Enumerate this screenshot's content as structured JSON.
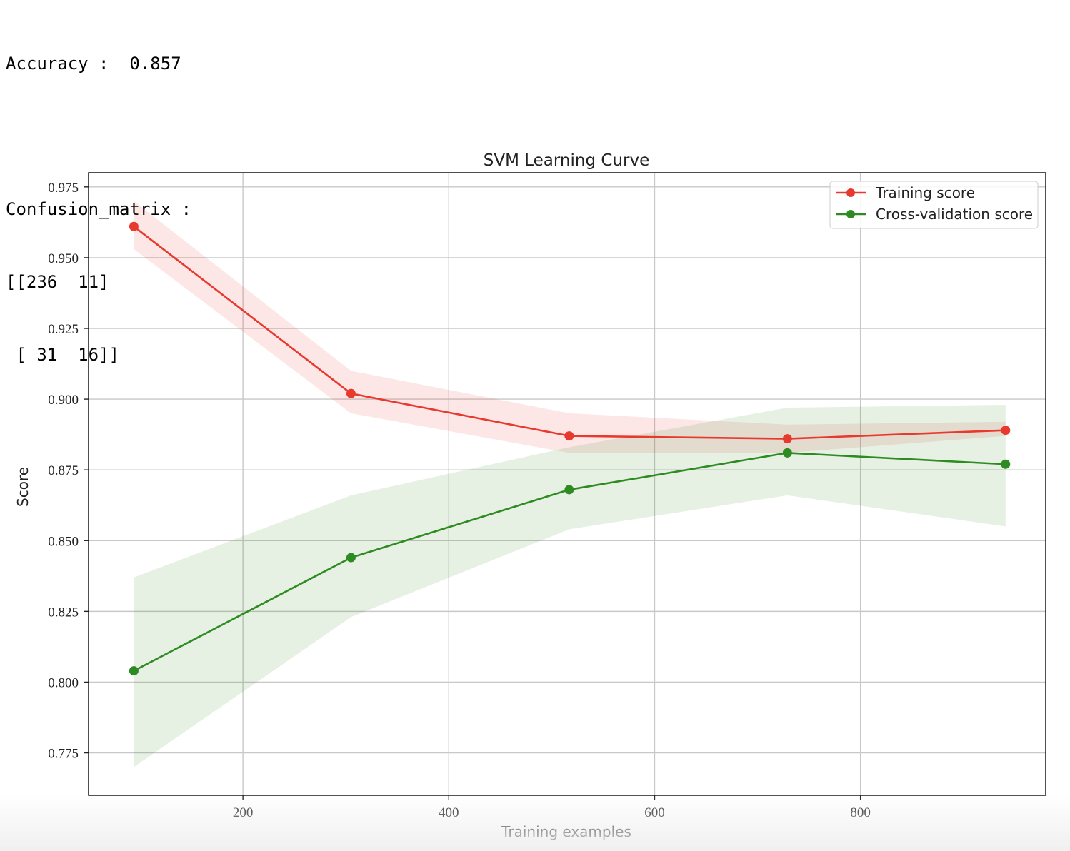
{
  "console": {
    "lines": [
      "Accuracy :  0.857",
      "",
      "Confusion_matrix :",
      "[[236  11]",
      " [ 31  16]]"
    ]
  },
  "chart_data": {
    "type": "line",
    "title": "SVM Learning Curve",
    "xlabel": "Training examples",
    "ylabel": "Score",
    "xlim": [
      50,
      980
    ],
    "ylim": [
      0.76,
      0.98
    ],
    "xticks": [
      200,
      400,
      600,
      800
    ],
    "yticks": [
      0.775,
      0.8,
      0.825,
      0.85,
      0.875,
      0.9,
      0.925,
      0.95,
      0.975
    ],
    "grid": true,
    "legend_position": "upper right",
    "x": [
      94,
      305,
      517,
      729,
      941
    ],
    "series": [
      {
        "name": "Training score",
        "color": "#e8392f",
        "values": [
          0.961,
          0.902,
          0.887,
          0.886,
          0.889
        ],
        "band_lower": [
          0.953,
          0.895,
          0.881,
          0.881,
          0.887
        ],
        "band_upper": [
          0.97,
          0.91,
          0.895,
          0.891,
          0.892
        ]
      },
      {
        "name": "Cross-validation score",
        "color": "#2e8b22",
        "values": [
          0.804,
          0.844,
          0.868,
          0.881,
          0.877
        ],
        "band_lower": [
          0.77,
          0.823,
          0.854,
          0.866,
          0.855
        ],
        "band_upper": [
          0.837,
          0.866,
          0.883,
          0.897,
          0.898
        ]
      }
    ]
  }
}
